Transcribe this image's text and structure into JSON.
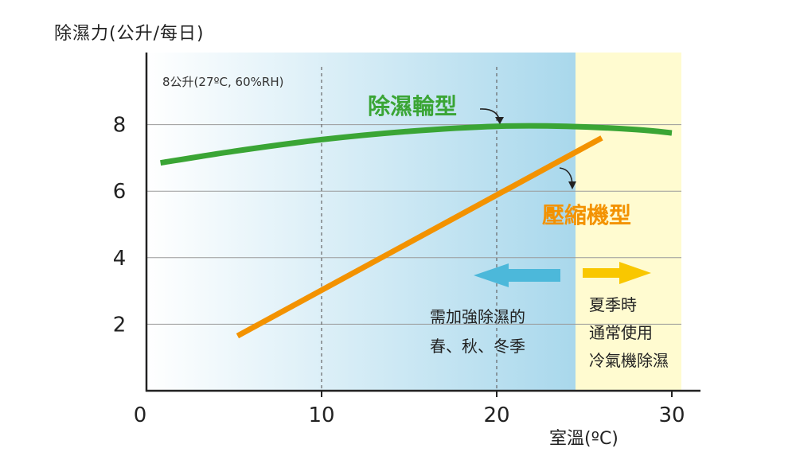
{
  "chart_data": {
    "type": "line",
    "ylabel": "除濕力(公升/每日)",
    "xlabel": "室溫(ºC)",
    "xlim": [
      0,
      31.5
    ],
    "ylim": [
      0,
      10
    ],
    "x_ticks": [
      "0",
      "10",
      "20",
      "30"
    ],
    "y_ticks": [
      "2",
      "4",
      "6",
      "8"
    ],
    "x_tick_values": [
      0,
      10,
      20,
      30
    ],
    "y_tick_values": [
      2,
      4,
      6,
      8
    ],
    "grid": {
      "horizontal": true,
      "vertical_dashed_at": [
        10,
        20
      ]
    },
    "reference_note": "8公升(27ºC, 60%RH)",
    "series": [
      {
        "name": "除濕輪型",
        "color": "#3aa535",
        "x": [
          0.8,
          5,
          10,
          15,
          20,
          24,
          28,
          30
        ],
        "y": [
          6.85,
          7.2,
          7.55,
          7.8,
          7.95,
          7.95,
          7.85,
          7.75
        ]
      },
      {
        "name": "壓縮機型",
        "color": "#f39200",
        "x": [
          5.2,
          26
        ],
        "y": [
          1.65,
          7.6
        ]
      }
    ],
    "annotations": {
      "left_zone_text": [
        "需加強除濕的",
        "春、秋、冬季"
      ],
      "right_zone_text": [
        "夏季時",
        "通常使用",
        "冷氣機除濕"
      ]
    },
    "zone_split_x": 24.5,
    "colors": {
      "left_zone_gradient": [
        "#ffffff",
        "#a9d8ec"
      ],
      "right_zone": "#fffbd0",
      "left_arrow": "#4cb8da",
      "right_arrow": "#f9c700",
      "grid": "#9a9a9a",
      "axis": "#222222",
      "green": "#3aa535",
      "orange": "#f39200"
    }
  }
}
